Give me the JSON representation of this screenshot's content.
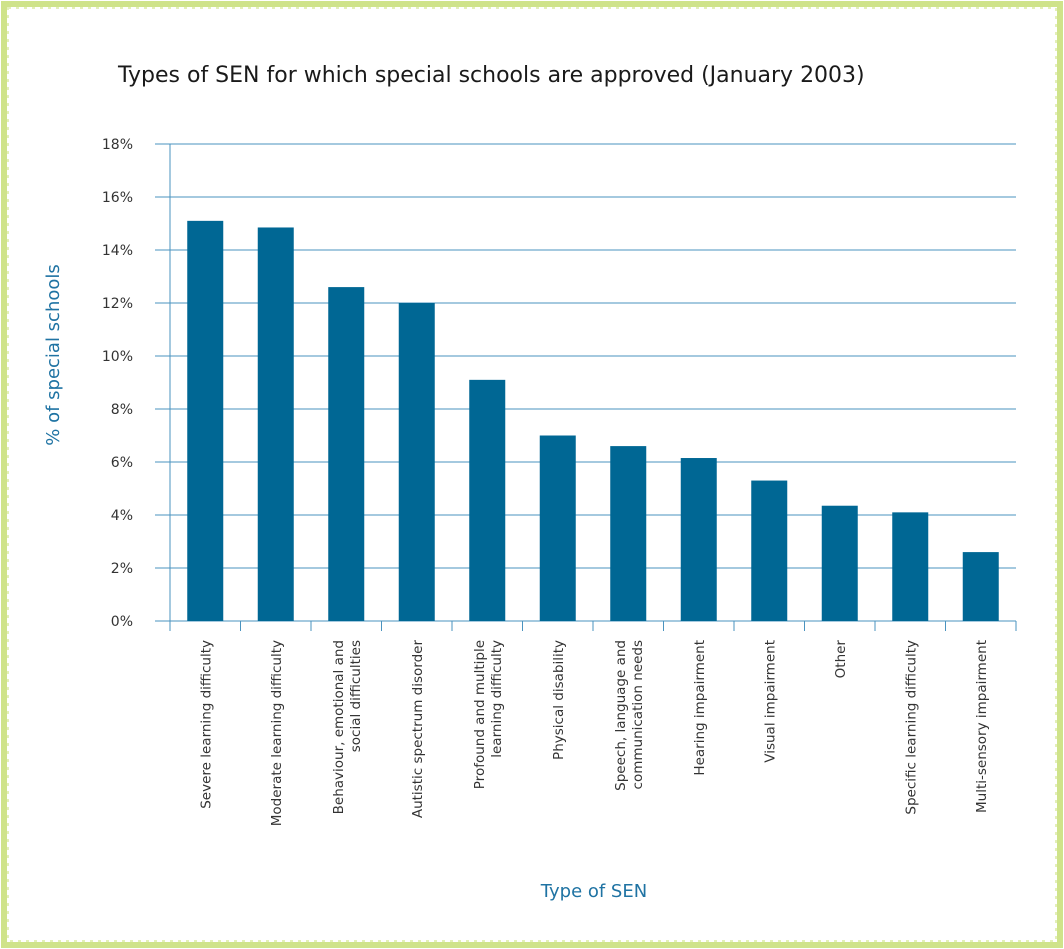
{
  "chart_data": {
    "type": "bar",
    "title": "Types of SEN for which special schools are approved (January 2003)",
    "xlabel": "Type of SEN",
    "ylabel": "% of special schools",
    "categories": [
      [
        "Severe learning difficulty"
      ],
      [
        "Moderate learning difficulty"
      ],
      [
        "Behaviour, emotional and",
        "social difficulties"
      ],
      [
        "Autistic spectrum disorder"
      ],
      [
        "Profound and multiple",
        "learning difficulty"
      ],
      [
        "Physical disability"
      ],
      [
        "Speech, language and",
        "communication needs"
      ],
      [
        "Hearing impairment"
      ],
      [
        "Visual impairment"
      ],
      [
        "Other"
      ],
      [
        "Specific learning difficulty"
      ],
      [
        "Multi-sensory impairment"
      ]
    ],
    "values": [
      15.1,
      14.85,
      12.6,
      12.0,
      9.1,
      7.0,
      6.6,
      6.15,
      5.3,
      4.35,
      4.1,
      2.6
    ],
    "ylim": [
      0,
      18
    ],
    "yticks": [
      0,
      2,
      4,
      6,
      8,
      10,
      12,
      14,
      16,
      18
    ],
    "ytick_format": "%",
    "grid": true,
    "legend": "none",
    "colors": {
      "bar": "#006794",
      "grid": "#4a93bf",
      "axis_title": "#1f73a3",
      "border": "#c9e07a"
    }
  }
}
